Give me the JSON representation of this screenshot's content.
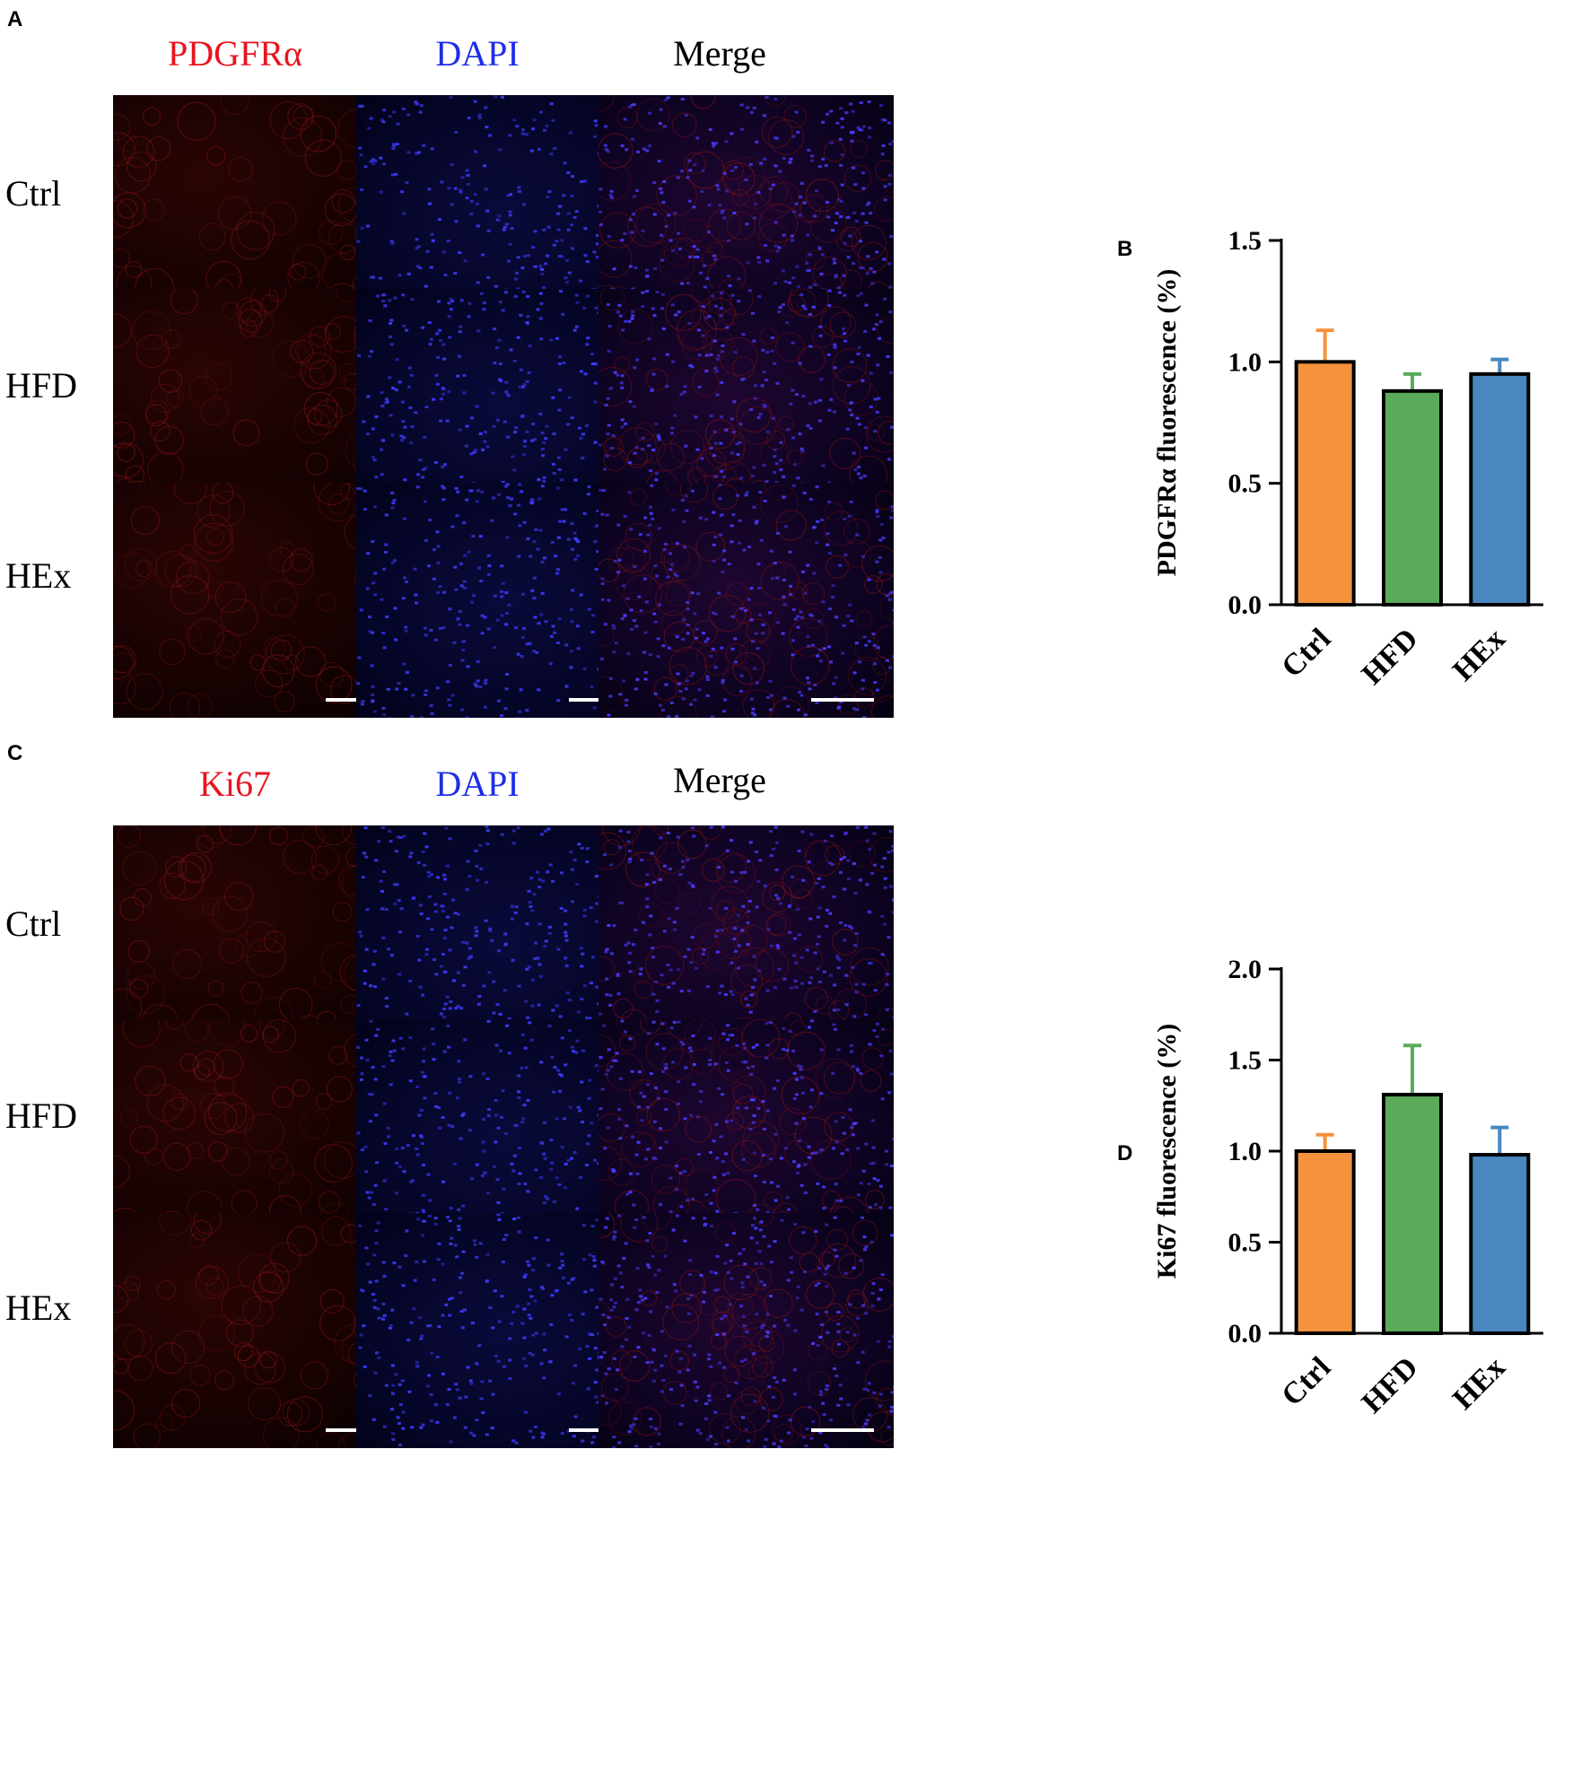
{
  "panels": {
    "A": {
      "letter": "A",
      "columns": [
        "PDGFRα",
        "DAPI",
        "Merge"
      ],
      "column_colors": [
        "#e8141e",
        "#1e2ee6",
        "#000000"
      ],
      "rows": [
        "Ctrl",
        "HFD",
        "HEx"
      ]
    },
    "C": {
      "letter": "C",
      "columns": [
        "Ki67",
        "DAPI",
        "Merge"
      ],
      "column_colors": [
        "#e8141e",
        "#1e2ee6",
        "#000000"
      ],
      "rows": [
        "Ctrl",
        "HFD",
        "HEx"
      ]
    },
    "B": {
      "letter": "B"
    },
    "D": {
      "letter": "D"
    }
  },
  "chart_data": [
    {
      "type": "bar",
      "panel": "B",
      "categories": [
        "Ctrl",
        "HFD",
        "HEx"
      ],
      "values": [
        1.0,
        0.88,
        0.95
      ],
      "errors": [
        0.13,
        0.07,
        0.06
      ],
      "colors": [
        "#f5923e",
        "#5aaa5a",
        "#4a87c0"
      ],
      "title": "",
      "xlabel": "",
      "ylabel": "PDGFRα fluorescence (%)",
      "ylim": [
        0,
        1.5
      ],
      "yticks": [
        "0.0",
        "0.5",
        "1.0",
        "1.5"
      ],
      "grid": false
    },
    {
      "type": "bar",
      "panel": "D",
      "categories": [
        "Ctrl",
        "HFD",
        "HEx"
      ],
      "values": [
        1.0,
        1.31,
        0.98
      ],
      "errors": [
        0.09,
        0.27,
        0.15
      ],
      "colors": [
        "#f5923e",
        "#5aaa5a",
        "#4a87c0"
      ],
      "title": "",
      "xlabel": "",
      "ylabel": "Ki67 fluorescence (%)",
      "ylim": [
        0,
        2.0
      ],
      "yticks": [
        "0.0",
        "0.5",
        "1.0",
        "1.5",
        "2.0"
      ],
      "grid": false
    }
  ]
}
